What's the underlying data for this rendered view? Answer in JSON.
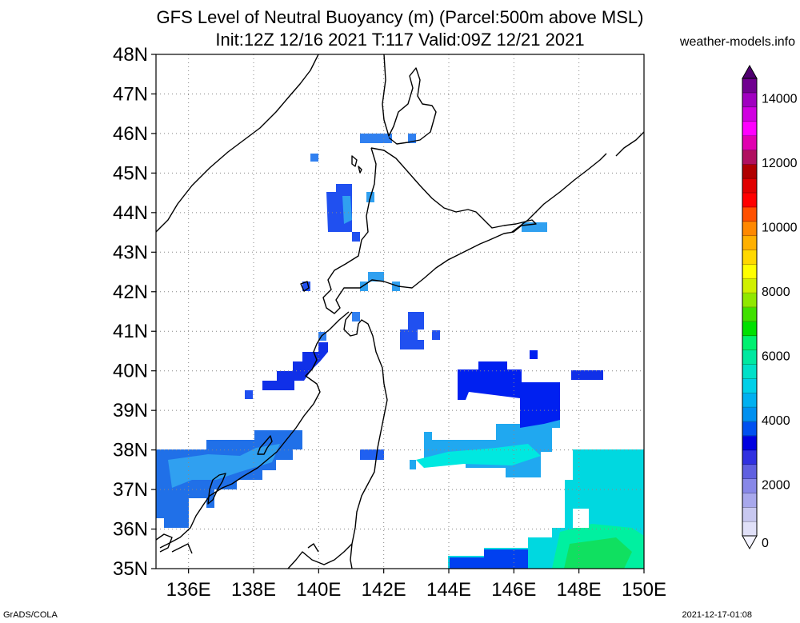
{
  "title_line1": "GFS Level of Neutral Buoyancy (m) (Parcel:500m above MSL)",
  "title_line2": "Init:12Z 12/16 2021 T:117 Valid:09Z 12/21 2021",
  "site": "weather-models.info",
  "footer_left": "GrADS/COLA",
  "footer_right": "2021-12-17-01:08",
  "map": {
    "lat_labels": [
      "48N",
      "47N",
      "46N",
      "45N",
      "44N",
      "43N",
      "42N",
      "41N",
      "40N",
      "39N",
      "38N",
      "37N",
      "36N",
      "35N"
    ],
    "lon_labels": [
      "136E",
      "138E",
      "140E",
      "142E",
      "144E",
      "146E",
      "148E",
      "150E"
    ],
    "lat_range": [
      35,
      48
    ],
    "lon_range": [
      135,
      150
    ],
    "gridlines": "dotted"
  },
  "colorbar": {
    "labels": [
      "0",
      "2000",
      "4000",
      "6000",
      "8000",
      "10000",
      "12000",
      "14000"
    ],
    "range": [
      0,
      15000
    ],
    "colors": [
      "#e0e0f8",
      "#c8c8f0",
      "#a8a8ec",
      "#8888e8",
      "#6060e0",
      "#3030e0",
      "#0000e0",
      "#0050f0",
      "#0090f0",
      "#00b0f0",
      "#00d0e8",
      "#00e0c8",
      "#00e8a0",
      "#00f070",
      "#00e000",
      "#40e000",
      "#90e800",
      "#d0f000",
      "#ffff00",
      "#ffd800",
      "#ffb000",
      "#ff8800",
      "#ff5000",
      "#ff0000",
      "#e00000",
      "#b00000",
      "#b01060",
      "#e000b0",
      "#ff00ff",
      "#d000e0",
      "#a000c0",
      "#700090"
    ]
  }
}
